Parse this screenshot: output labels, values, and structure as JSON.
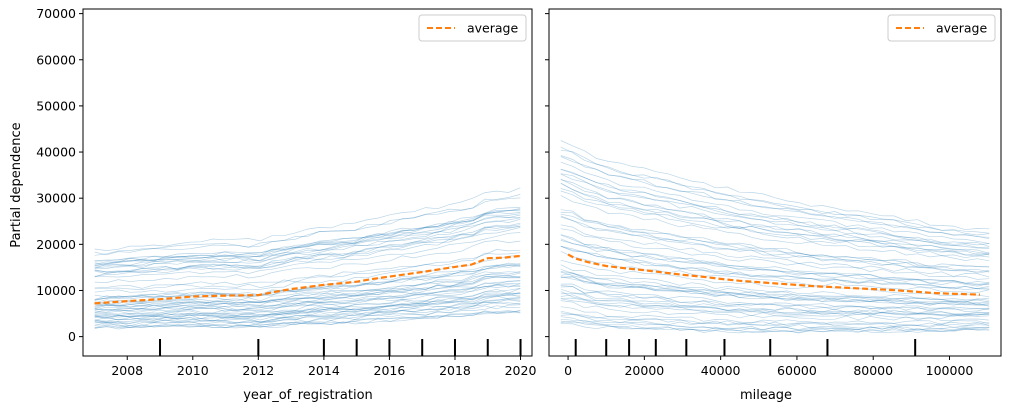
{
  "chart_data": [
    {
      "type": "line",
      "title": "",
      "xlabel": "year_of_registration",
      "ylabel": "Partial dependence",
      "xlim": [
        2006.65,
        2020.35
      ],
      "ylim": [
        -4200,
        71000
      ],
      "xticks": [
        2008,
        2010,
        2012,
        2014,
        2016,
        2018,
        2020
      ],
      "yticks": [
        0,
        10000,
        20000,
        30000,
        40000,
        50000,
        60000,
        70000
      ],
      "grid": false,
      "legend": "top-right",
      "x": [
        2007,
        2008,
        2009,
        2010,
        2011,
        2012,
        2012.5,
        2013,
        2014,
        2015,
        2015.5,
        2016,
        2017,
        2018,
        2018.5,
        2019,
        2019.5,
        2020
      ],
      "series": [
        {
          "name": "average",
          "style": "dashed",
          "color": "#ff7f0e",
          "values": [
            7200,
            7700,
            8100,
            8700,
            8900,
            9000,
            9700,
            10300,
            11200,
            11900,
            12500,
            13000,
            14000,
            15100,
            15600,
            17000,
            17100,
            17500
          ]
        }
      ],
      "ice_curves": {
        "count": 60,
        "color": "#1f77b4",
        "start_range": [
          2000,
          19500
        ],
        "end_range": [
          5500,
          33000
        ],
        "max_value": 43000
      },
      "rug_ticks": [
        2009,
        2012,
        2014,
        2015,
        2016,
        2017,
        2018,
        2019,
        2020
      ]
    },
    {
      "type": "line",
      "title": "",
      "xlabel": "mileage",
      "ylabel": "",
      "xlim": [
        -5000,
        113500
      ],
      "ylim": [
        -4200,
        71000
      ],
      "xticks": [
        0,
        20000,
        40000,
        60000,
        80000,
        100000
      ],
      "yticks": [
        0,
        10000,
        20000,
        30000,
        40000,
        50000,
        60000,
        70000
      ],
      "grid": false,
      "legend": "top-right",
      "x": [
        0,
        2000,
        5000,
        10000,
        15000,
        20000,
        25000,
        30000,
        35000,
        40000,
        45000,
        50000,
        55000,
        60000,
        65000,
        70000,
        75000,
        80000,
        85000,
        90000,
        95000,
        100000,
        108000
      ],
      "series": [
        {
          "name": "average",
          "style": "dashed",
          "color": "#ff7f0e",
          "values": [
            17800,
            16900,
            16200,
            15300,
            14800,
            14400,
            13900,
            13400,
            13000,
            12500,
            12100,
            11800,
            11500,
            11200,
            10900,
            10700,
            10500,
            10300,
            10100,
            9800,
            9500,
            9300,
            9100
          ]
        }
      ],
      "ice_curves": {
        "count": 60,
        "color": "#1f77b4",
        "start_range": [
          3000,
          42500
        ],
        "end_range": [
          1500,
          23000
        ],
        "max_value": 42500
      },
      "rug_ticks": [
        2000,
        10000,
        16000,
        23000,
        31000,
        41000,
        53000,
        68000,
        91000
      ]
    }
  ]
}
